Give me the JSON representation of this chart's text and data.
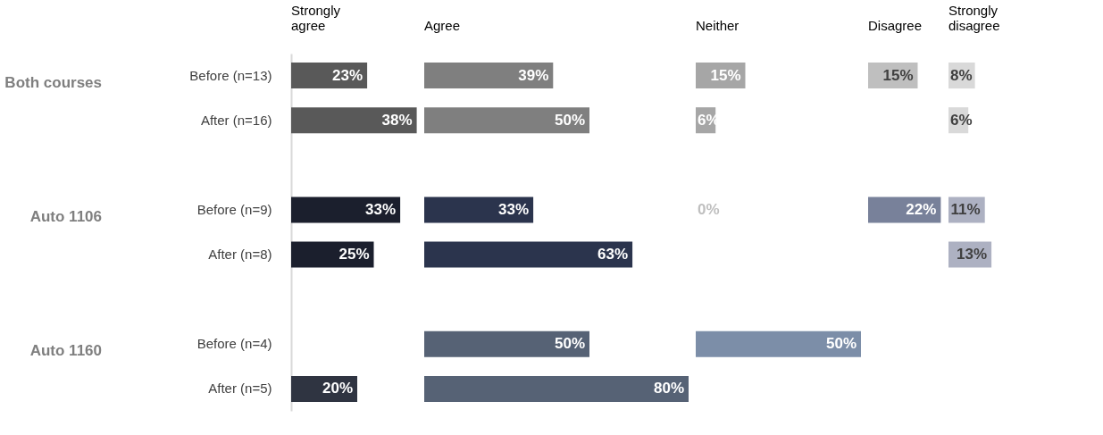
{
  "chart_data": [
    {
      "type": "bar",
      "orientation": "horizontal",
      "title": "Strongly agree",
      "tick_labels": "y",
      "categories": [
        "Before (n=13)",
        "After (n=16)",
        "Before (n=9)",
        "After (n=8)",
        "Before (n=4)",
        "After (n=5)"
      ],
      "annotations": [
        "Both courses",
        "Auto 1106",
        "Auto 1160"
      ],
      "xlim": [
        0,
        38
      ],
      "values": [
        23,
        38,
        33,
        25,
        null,
        20
      ],
      "colors": [
        "#595959",
        "#595959",
        "#1b1f2d",
        "#1b1f2d",
        null,
        "#2f3441"
      ],
      "value_labels": [
        "23%",
        "38%",
        "33%",
        "25%",
        null,
        "20%"
      ]
    },
    {
      "type": "bar",
      "orientation": "horizontal",
      "title": "Agree",
      "tick_labels": false,
      "xlim": [
        0,
        80
      ],
      "values": [
        39,
        50,
        33,
        63,
        50,
        80
      ],
      "colors": [
        "#7f7f7f",
        "#7f7f7f",
        "#2b344d",
        "#2b344d",
        "#566275",
        "#566275"
      ],
      "value_labels": [
        "39%",
        "50%",
        "33%",
        "63%",
        "50%",
        "80%"
      ]
    },
    {
      "type": "bar",
      "orientation": "horizontal",
      "title": "Neither",
      "tick_labels": false,
      "xlim": [
        0,
        50
      ],
      "values": [
        15,
        6,
        0,
        null,
        50,
        null
      ],
      "colors": [
        "#a6a6a6",
        "#a6a6a6",
        "#f2f2f2",
        null,
        "#7c8ea8",
        null
      ],
      "value_labels": [
        "15%",
        "6%",
        "0%",
        null,
        "50%",
        null
      ]
    },
    {
      "type": "bar",
      "orientation": "horizontal",
      "title": "Disagree",
      "tick_labels": false,
      "xlim": [
        0,
        22
      ],
      "values": [
        15,
        null,
        22,
        null,
        null,
        null
      ],
      "colors": [
        "#bfbfbf",
        null,
        "#78819a",
        null,
        null,
        null
      ],
      "value_labels": [
        "15%",
        null,
        "22%",
        null,
        null,
        null
      ]
    },
    {
      "type": "bar",
      "orientation": "horizontal",
      "title": "Strongly disagree",
      "tick_labels": false,
      "xlim": [
        0,
        13
      ],
      "values": [
        8,
        6,
        11,
        13,
        null,
        null
      ],
      "colors": [
        "#d9d9d9",
        "#d9d9d9",
        "#adb1c2",
        "#adb1c2",
        null,
        null
      ],
      "value_labels": [
        "8%",
        "6%",
        "11%",
        "13%",
        null,
        null
      ]
    }
  ]
}
